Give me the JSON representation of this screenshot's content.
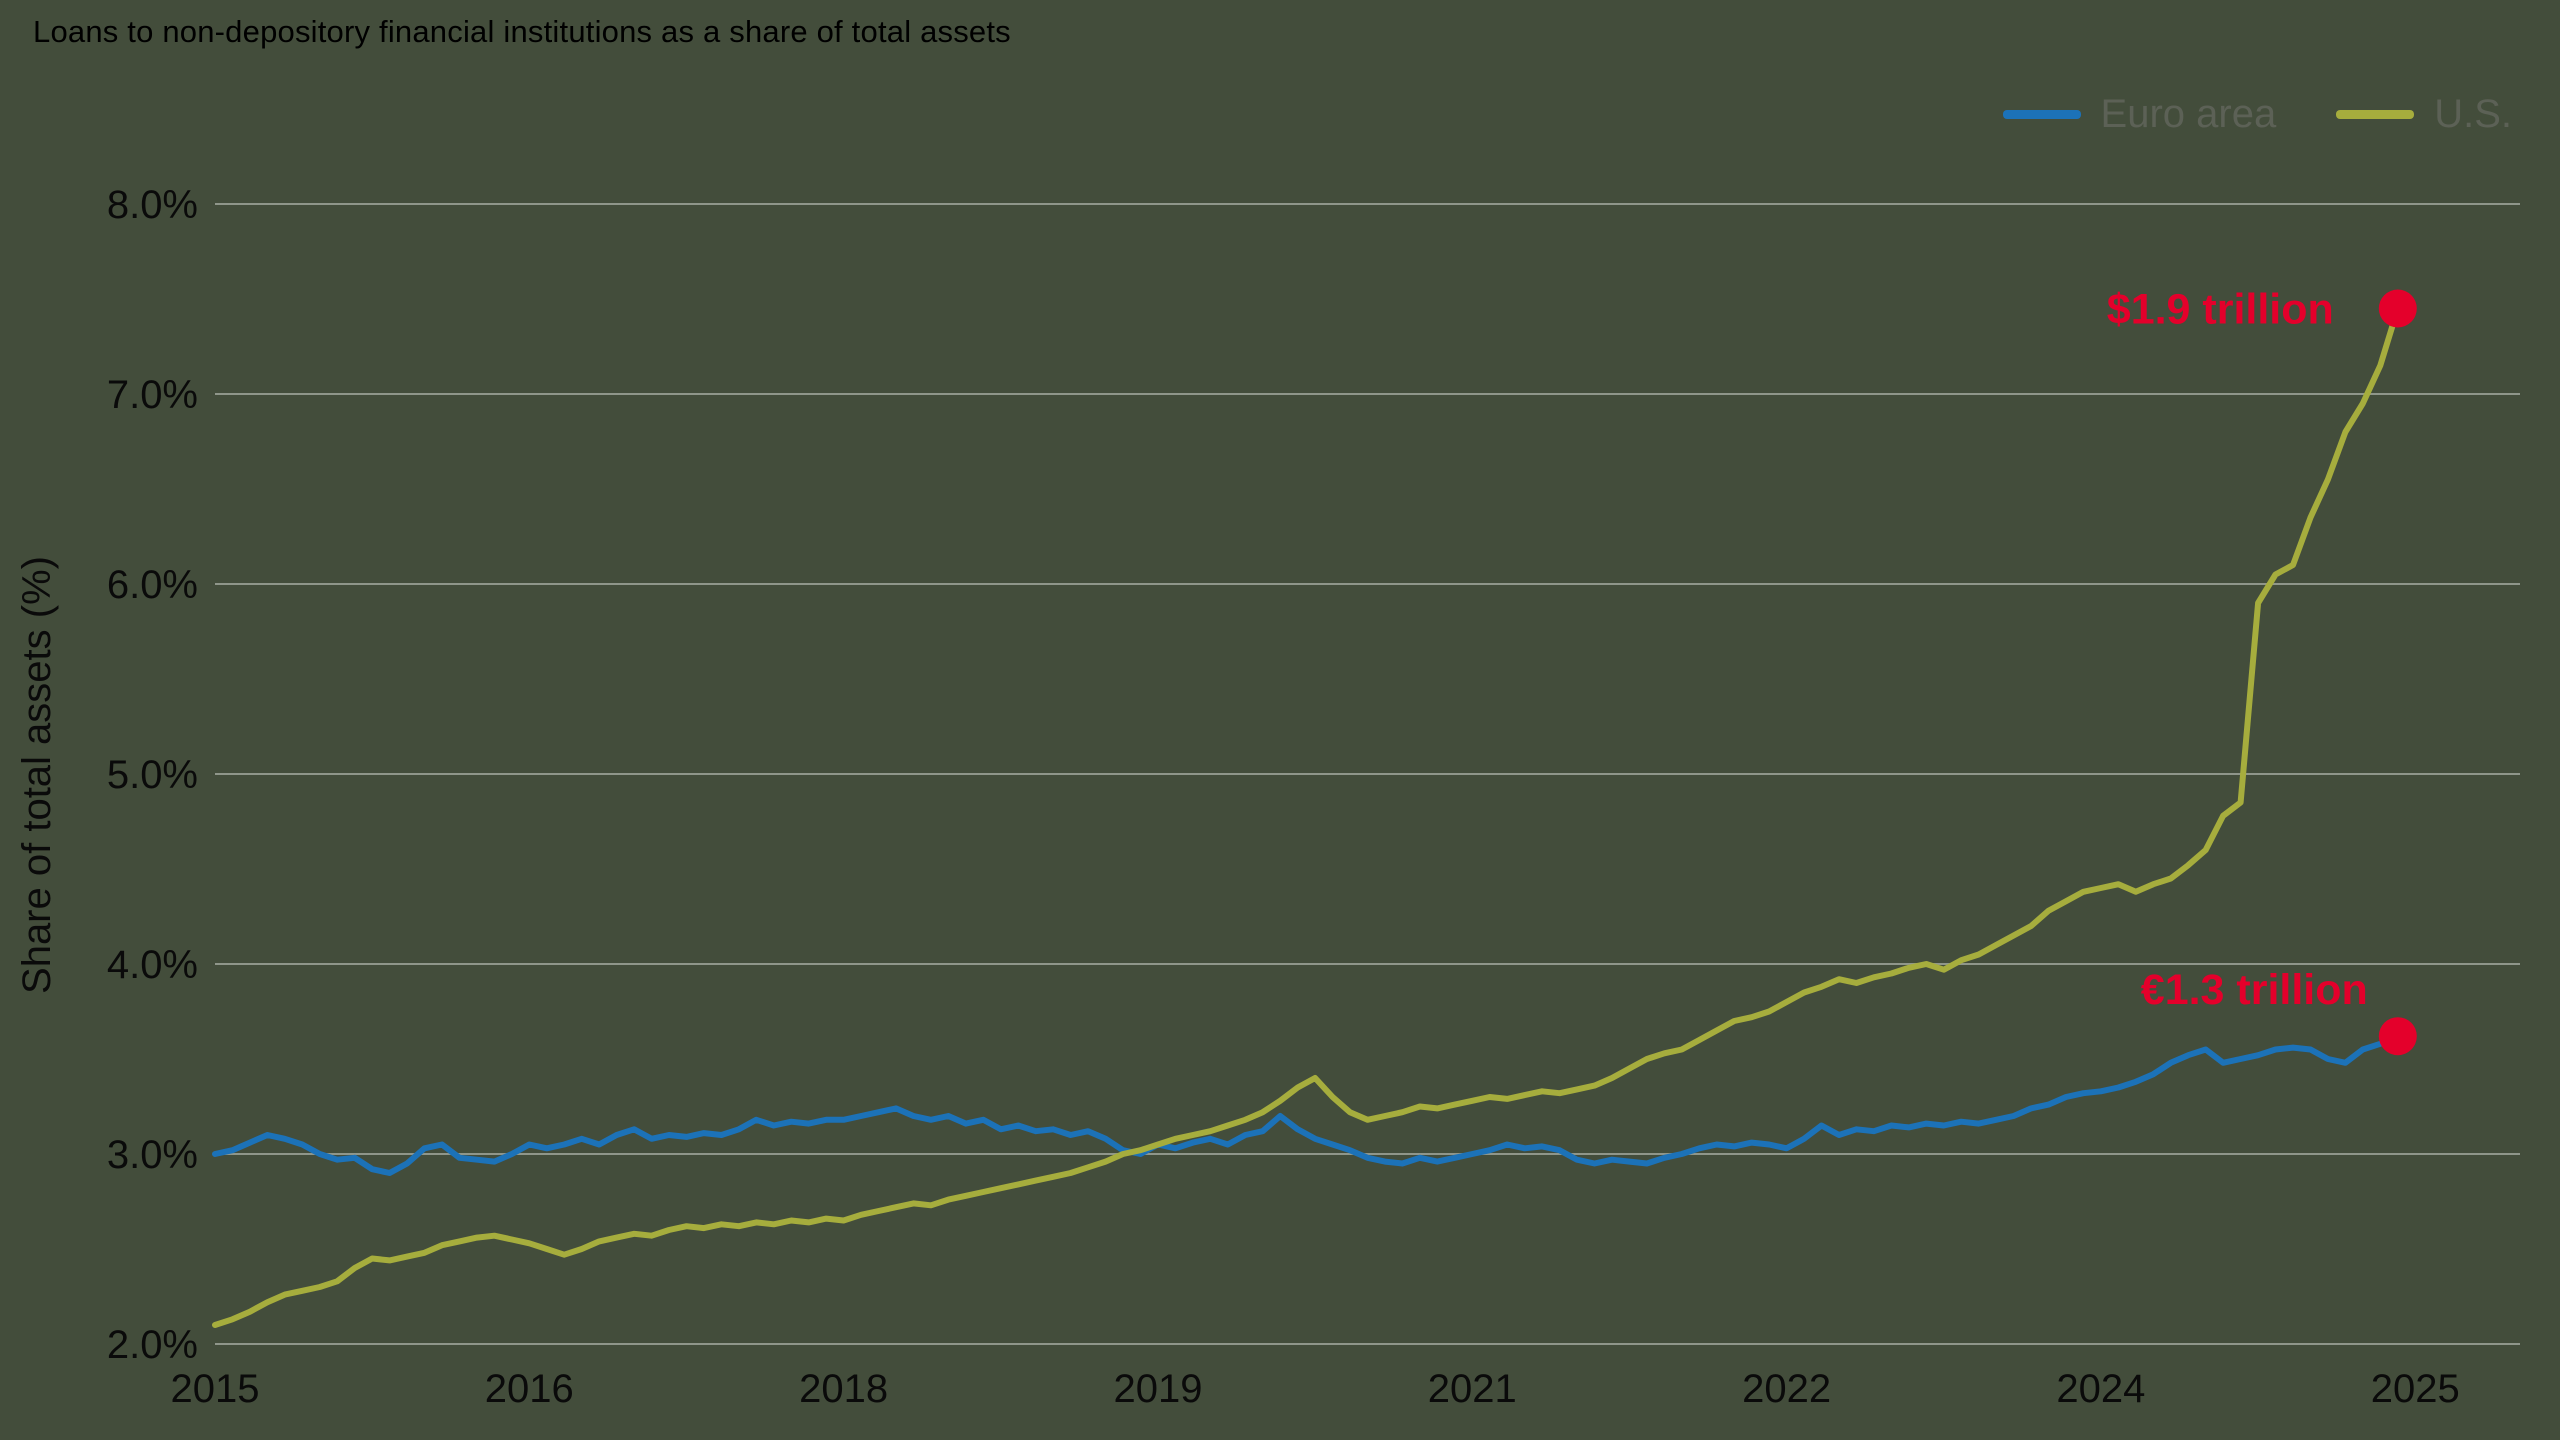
{
  "colors": {
    "background": "#434d3b",
    "gridline": "#8f968a",
    "title_text": "#000000",
    "axis_text": "#0a0a0a",
    "legend_text": "#5c6156",
    "euro_line": "#1c72b8",
    "us_line": "#a6ad3d",
    "marker": "#e4002b",
    "annotation_text": "#e4002b"
  },
  "chart_data": {
    "type": "line",
    "title": "Loans to non-depository financial institutions as a share of total assets",
    "ylabel": "Share of total assets (%)",
    "xlabel": "",
    "grid": "horizontal",
    "legend_position": "top-right",
    "xlim": [
      2015,
      2026
    ],
    "ylim": [
      2.0,
      8.0
    ],
    "x_start_year": 2015,
    "x_step_months": 1,
    "x_ticks": [
      {
        "value": 2015.0,
        "label": "2015"
      },
      {
        "value": 2016.5,
        "label": "2016"
      },
      {
        "value": 2018.0,
        "label": "2018"
      },
      {
        "value": 2019.5,
        "label": "2019"
      },
      {
        "value": 2021.0,
        "label": "2021"
      },
      {
        "value": 2022.5,
        "label": "2022"
      },
      {
        "value": 2024.0,
        "label": "2024"
      },
      {
        "value": 2025.5,
        "label": "2025"
      }
    ],
    "y_ticks": [
      {
        "value": 2.0,
        "label": "2.0%"
      },
      {
        "value": 3.0,
        "label": "3.0%"
      },
      {
        "value": 4.0,
        "label": "4.0%"
      },
      {
        "value": 5.0,
        "label": "5.0%"
      },
      {
        "value": 6.0,
        "label": "6.0%"
      },
      {
        "value": 7.0,
        "label": "7.0%"
      },
      {
        "value": 8.0,
        "label": "8.0%"
      }
    ],
    "series": [
      {
        "name": "Euro area",
        "color": "#1c72b8",
        "end_label": "€1.3 trillion",
        "end_value_pct": 3.62,
        "values": [
          3.0,
          3.02,
          3.06,
          3.1,
          3.08,
          3.05,
          3.0,
          2.97,
          2.98,
          2.92,
          2.9,
          2.95,
          3.03,
          3.05,
          2.98,
          2.97,
          2.96,
          3.0,
          3.05,
          3.03,
          3.05,
          3.08,
          3.05,
          3.1,
          3.13,
          3.08,
          3.1,
          3.09,
          3.11,
          3.1,
          3.13,
          3.18,
          3.15,
          3.17,
          3.16,
          3.18,
          3.18,
          3.2,
          3.22,
          3.24,
          3.2,
          3.18,
          3.2,
          3.16,
          3.18,
          3.13,
          3.15,
          3.12,
          3.13,
          3.1,
          3.12,
          3.08,
          3.02,
          3.0,
          3.05,
          3.03,
          3.06,
          3.08,
          3.05,
          3.1,
          3.12,
          3.2,
          3.13,
          3.08,
          3.05,
          3.02,
          2.98,
          2.96,
          2.95,
          2.98,
          2.96,
          2.98,
          3.0,
          3.02,
          3.05,
          3.03,
          3.04,
          3.02,
          2.97,
          2.95,
          2.97,
          2.96,
          2.95,
          2.98,
          3.0,
          3.03,
          3.05,
          3.04,
          3.06,
          3.05,
          3.03,
          3.08,
          3.15,
          3.1,
          3.13,
          3.12,
          3.15,
          3.14,
          3.16,
          3.15,
          3.17,
          3.16,
          3.18,
          3.2,
          3.24,
          3.26,
          3.3,
          3.32,
          3.33,
          3.35,
          3.38,
          3.42,
          3.48,
          3.52,
          3.55,
          3.48,
          3.5,
          3.52,
          3.55,
          3.56,
          3.55,
          3.5,
          3.48,
          3.55,
          3.58,
          3.62
        ]
      },
      {
        "name": "U.S.",
        "color": "#a6ad3d",
        "end_label": "$1.9 trillion",
        "end_value_pct": 7.45,
        "values": [
          2.1,
          2.13,
          2.17,
          2.22,
          2.26,
          2.28,
          2.3,
          2.33,
          2.4,
          2.45,
          2.44,
          2.46,
          2.48,
          2.52,
          2.54,
          2.56,
          2.57,
          2.55,
          2.53,
          2.5,
          2.47,
          2.5,
          2.54,
          2.56,
          2.58,
          2.57,
          2.6,
          2.62,
          2.61,
          2.63,
          2.62,
          2.64,
          2.63,
          2.65,
          2.64,
          2.66,
          2.65,
          2.68,
          2.7,
          2.72,
          2.74,
          2.73,
          2.76,
          2.78,
          2.8,
          2.82,
          2.84,
          2.86,
          2.88,
          2.9,
          2.93,
          2.96,
          3.0,
          3.02,
          3.05,
          3.08,
          3.1,
          3.12,
          3.15,
          3.18,
          3.22,
          3.28,
          3.35,
          3.4,
          3.3,
          3.22,
          3.18,
          3.2,
          3.22,
          3.25,
          3.24,
          3.26,
          3.28,
          3.3,
          3.29,
          3.31,
          3.33,
          3.32,
          3.34,
          3.36,
          3.4,
          3.45,
          3.5,
          3.53,
          3.55,
          3.6,
          3.65,
          3.7,
          3.72,
          3.75,
          3.8,
          3.85,
          3.88,
          3.92,
          3.9,
          3.93,
          3.95,
          3.98,
          4.0,
          3.97,
          4.02,
          4.05,
          4.1,
          4.15,
          4.2,
          4.28,
          4.33,
          4.38,
          4.4,
          4.42,
          4.38,
          4.42,
          4.45,
          4.52,
          4.6,
          4.78,
          4.85,
          5.9,
          6.05,
          6.1,
          6.35,
          6.55,
          6.8,
          6.95,
          7.15,
          7.45
        ]
      }
    ],
    "annotations": [
      {
        "series": "U.S.",
        "label": "$1.9 trillion"
      },
      {
        "series": "Euro area",
        "label": "€1.3 trillion"
      }
    ]
  }
}
